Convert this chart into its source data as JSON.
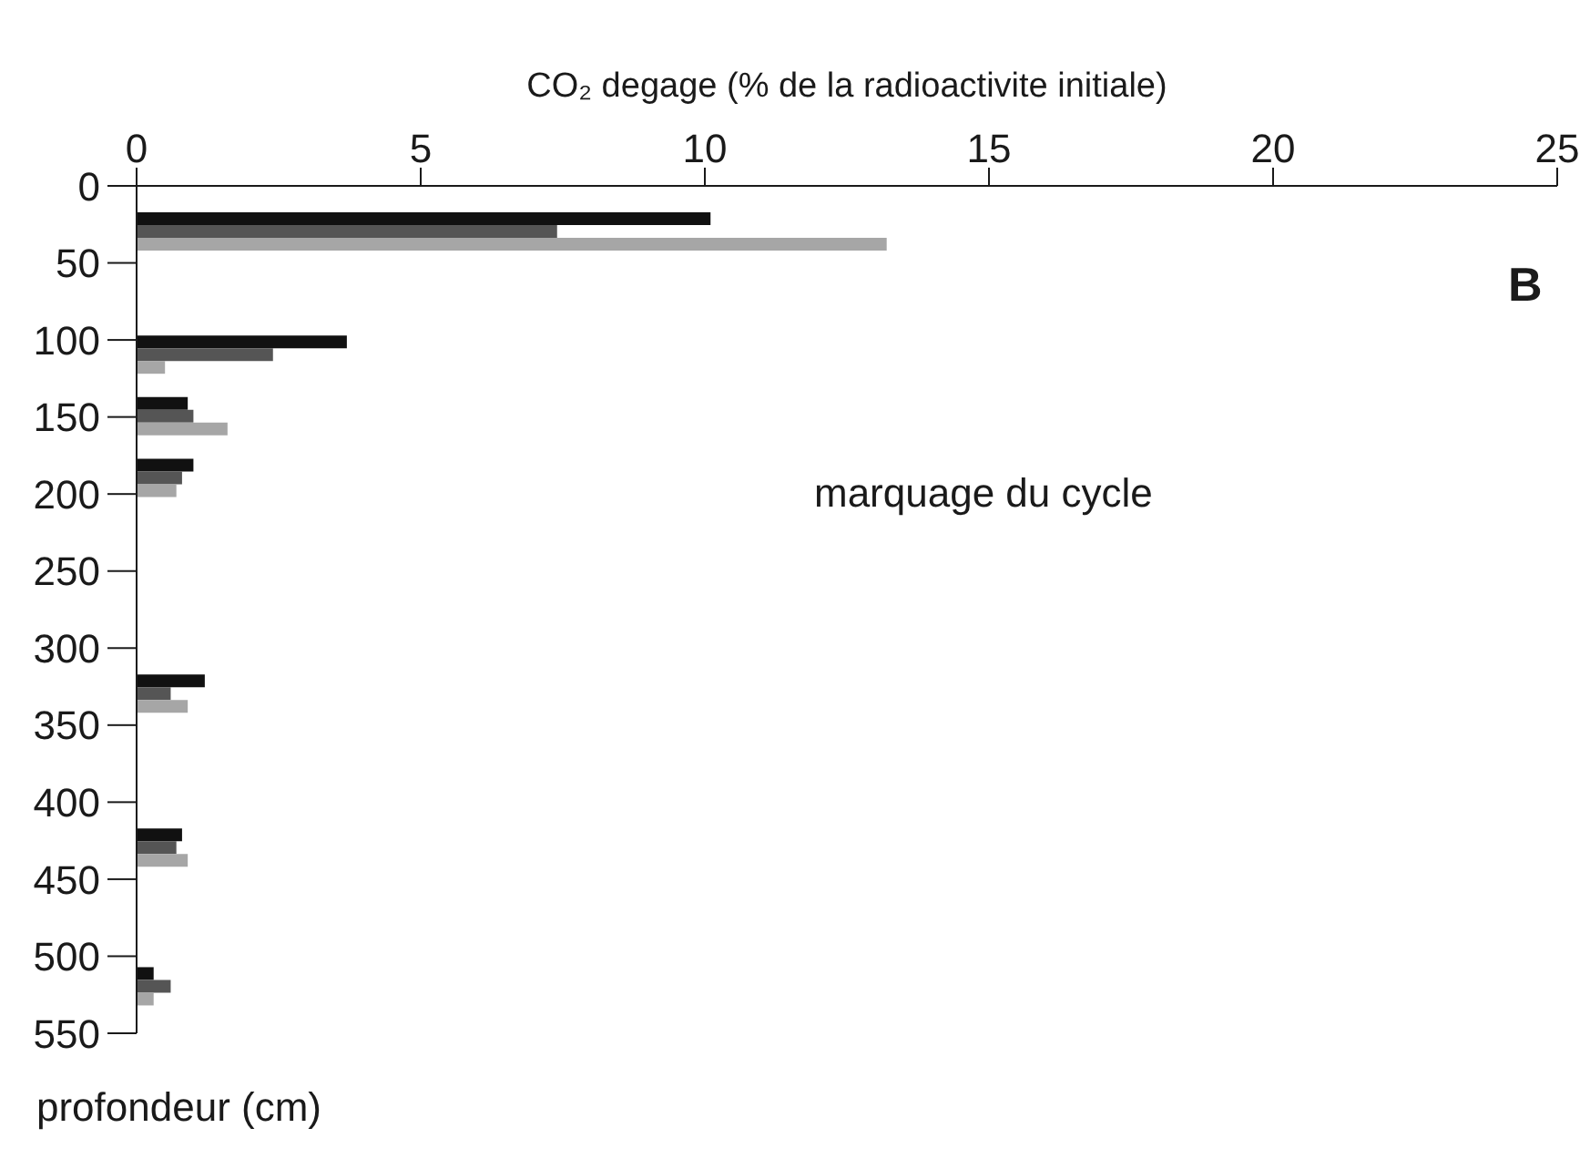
{
  "chart_data": {
    "type": "bar",
    "orientation": "horizontal",
    "xlabel": "CO₂ degage (% de la radioactivite initiale)",
    "ylabel": "profondeur (cm)",
    "annotations": [
      "B",
      "marquage du cycle"
    ],
    "x": [
      30,
      110,
      150,
      190,
      330,
      430,
      520
    ],
    "series": [
      {
        "color": "#111111",
        "values": [
          10.1,
          3.7,
          0.9,
          1.0,
          1.2,
          0.8,
          0.3
        ]
      },
      {
        "color": "#555555",
        "values": [
          7.4,
          2.4,
          1.0,
          0.8,
          0.6,
          0.7,
          0.6
        ]
      },
      {
        "color": "#a6a6a6",
        "values": [
          13.2,
          0.5,
          1.6,
          0.7,
          0.9,
          0.9,
          0.3
        ]
      }
    ],
    "xlim": [
      0,
      25
    ],
    "xticks": [
      0,
      5,
      10,
      15,
      20,
      25
    ],
    "ylim": [
      550,
      0
    ],
    "yticks": [
      0,
      50,
      100,
      150,
      200,
      250,
      300,
      350,
      400,
      450,
      500,
      550
    ]
  }
}
